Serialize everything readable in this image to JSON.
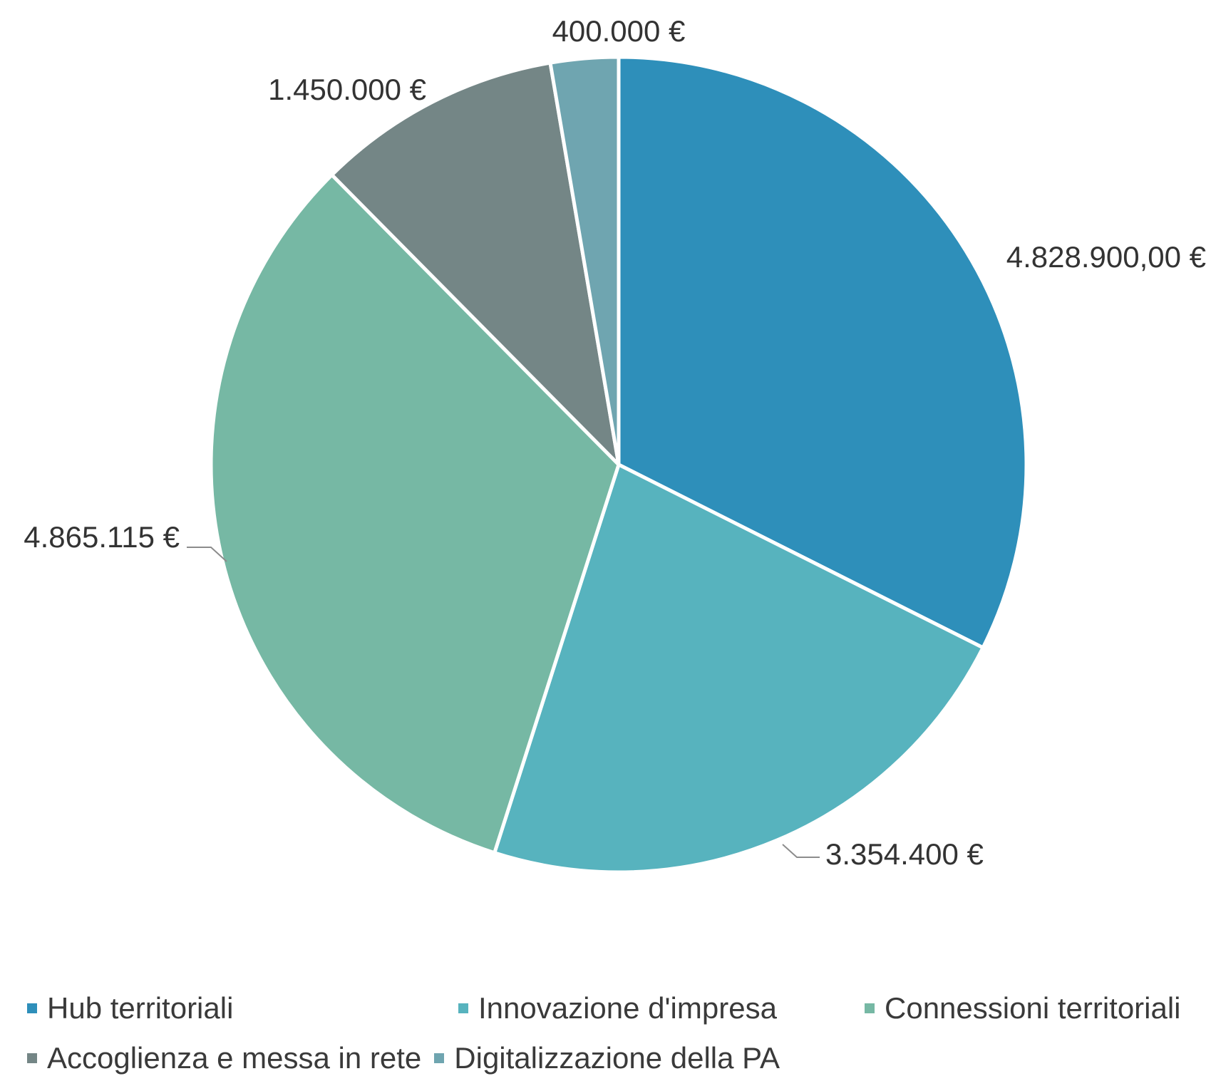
{
  "chart_data": {
    "type": "pie",
    "title": "",
    "slices": [
      {
        "name": "Hub territoriali",
        "value": 4828900,
        "label": "4.828.900,00 €",
        "color": "#2E8FBA"
      },
      {
        "name": "Innovazione d'impresa",
        "value": 3354400,
        "label": "3.354.400 €",
        "color": "#57B3BE"
      },
      {
        "name": "Connessioni territoriali",
        "value": 4865115,
        "label": "4.865.115 €",
        "color": "#76B8A4"
      },
      {
        "name": "Accoglienza e messa in rete",
        "value": 1450000,
        "label": "1.450.000 €",
        "color": "#748686"
      },
      {
        "name": "Digitalizzazione della PA",
        "value": 400000,
        "label": "400.000 €",
        "color": "#6FA5B0"
      }
    ],
    "legend_position": "bottom",
    "grid": false
  }
}
